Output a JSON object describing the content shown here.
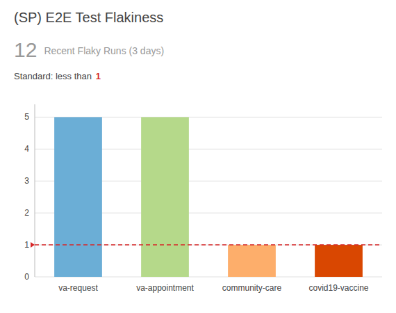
{
  "chart_data": {
    "type": "bar",
    "title": "(SP) E2E Test Flakiness",
    "subtitle": "Recent Flaky Runs (3 days)",
    "total": 12,
    "annotations": [
      "Standard: less than "
    ],
    "categories": [
      "va-request",
      "va-appointment",
      "community-care",
      "covid19-vaccine"
    ],
    "values": [
      5,
      5,
      1,
      1
    ],
    "colors": [
      "#6baed6",
      "#b5d98a",
      "#fdae6b",
      "#d94701"
    ],
    "threshold": {
      "value": 1,
      "color": "#d62728"
    },
    "ylim": [
      0,
      5.4
    ],
    "yticks": [
      0,
      1,
      2,
      3,
      4,
      5
    ],
    "grid": true
  }
}
